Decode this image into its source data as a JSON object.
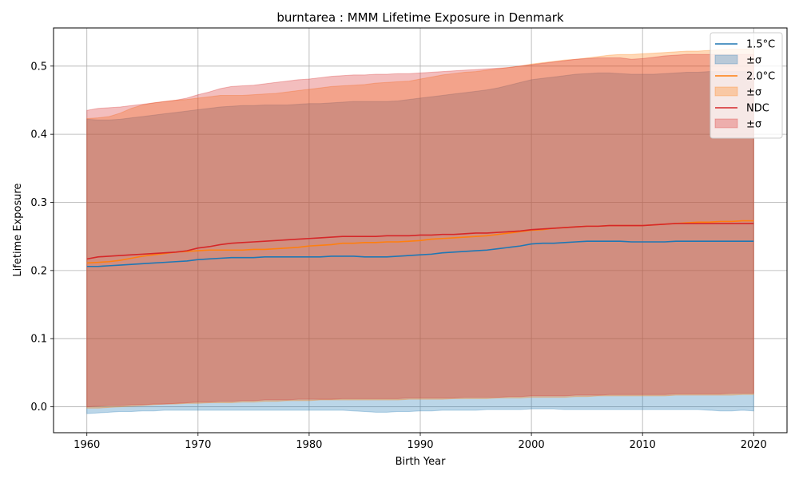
{
  "chart_data": {
    "type": "area",
    "title": "burntarea : MMM Lifetime Exposure in Denmark",
    "xlabel": "Birth Year",
    "ylabel": "Lifetime Exposure",
    "xlim": [
      1957,
      2023
    ],
    "ylim": [
      -0.038,
      0.556
    ],
    "xticks": [
      1960,
      1970,
      1980,
      1990,
      2000,
      2010,
      2020
    ],
    "yticks": [
      0.0,
      0.1,
      0.2,
      0.3,
      0.4,
      0.5
    ],
    "ytick_labels": [
      "0.0",
      "0.1",
      "0.2",
      "0.3",
      "0.4",
      "0.5"
    ],
    "grid": true,
    "legend_position": "top-right",
    "x": [
      1960,
      1961,
      1962,
      1963,
      1964,
      1965,
      1966,
      1967,
      1968,
      1969,
      1970,
      1971,
      1972,
      1973,
      1974,
      1975,
      1976,
      1977,
      1978,
      1979,
      1980,
      1981,
      1982,
      1983,
      1984,
      1985,
      1986,
      1987,
      1988,
      1989,
      1990,
      1991,
      1992,
      1993,
      1994,
      1995,
      1996,
      1997,
      1998,
      1999,
      2000,
      2001,
      2002,
      2003,
      2004,
      2005,
      2006,
      2007,
      2008,
      2009,
      2010,
      2011,
      2012,
      2013,
      2014,
      2015,
      2016,
      2017,
      2018,
      2019,
      2020
    ],
    "series": [
      {
        "name": "1.5°C",
        "band_name": "±σ",
        "color": "#1f77b4",
        "mean": [
          0.206,
          0.206,
          0.207,
          0.208,
          0.209,
          0.21,
          0.211,
          0.212,
          0.213,
          0.214,
          0.216,
          0.217,
          0.218,
          0.219,
          0.219,
          0.219,
          0.22,
          0.22,
          0.22,
          0.22,
          0.22,
          0.22,
          0.221,
          0.221,
          0.221,
          0.22,
          0.22,
          0.22,
          0.221,
          0.222,
          0.223,
          0.224,
          0.226,
          0.227,
          0.228,
          0.229,
          0.23,
          0.232,
          0.234,
          0.236,
          0.239,
          0.24,
          0.24,
          0.241,
          0.242,
          0.243,
          0.243,
          0.243,
          0.243,
          0.242,
          0.242,
          0.242,
          0.242,
          0.243,
          0.243,
          0.243,
          0.243,
          0.243,
          0.243,
          0.243,
          0.243
        ],
        "upper": [
          0.422,
          0.421,
          0.421,
          0.422,
          0.424,
          0.426,
          0.428,
          0.43,
          0.432,
          0.434,
          0.436,
          0.438,
          0.44,
          0.441,
          0.442,
          0.442,
          0.443,
          0.443,
          0.443,
          0.444,
          0.445,
          0.445,
          0.446,
          0.447,
          0.448,
          0.448,
          0.448,
          0.448,
          0.449,
          0.451,
          0.453,
          0.455,
          0.457,
          0.459,
          0.461,
          0.463,
          0.465,
          0.468,
          0.472,
          0.476,
          0.48,
          0.482,
          0.484,
          0.486,
          0.488,
          0.489,
          0.49,
          0.49,
          0.489,
          0.488,
          0.488,
          0.488,
          0.489,
          0.49,
          0.491,
          0.491,
          0.492,
          0.492,
          0.492,
          0.492,
          0.492
        ],
        "lower": [
          -0.01,
          -0.009,
          -0.008,
          -0.007,
          -0.007,
          -0.006,
          -0.006,
          -0.005,
          -0.005,
          -0.005,
          -0.005,
          -0.005,
          -0.005,
          -0.005,
          -0.005,
          -0.005,
          -0.005,
          -0.005,
          -0.005,
          -0.005,
          -0.005,
          -0.005,
          -0.005,
          -0.005,
          -0.006,
          -0.007,
          -0.008,
          -0.008,
          -0.007,
          -0.007,
          -0.006,
          -0.006,
          -0.005,
          -0.005,
          -0.005,
          -0.005,
          -0.004,
          -0.004,
          -0.004,
          -0.004,
          -0.003,
          -0.003,
          -0.003,
          -0.004,
          -0.004,
          -0.004,
          -0.004,
          -0.004,
          -0.004,
          -0.004,
          -0.004,
          -0.004,
          -0.004,
          -0.004,
          -0.004,
          -0.004,
          -0.005,
          -0.006,
          -0.006,
          -0.005,
          -0.006
        ]
      },
      {
        "name": "2.0°C",
        "band_name": "±σ",
        "color": "#ff7f0e",
        "mean": [
          0.211,
          0.212,
          0.213,
          0.215,
          0.218,
          0.221,
          0.223,
          0.225,
          0.227,
          0.228,
          0.229,
          0.23,
          0.23,
          0.23,
          0.23,
          0.231,
          0.231,
          0.232,
          0.233,
          0.234,
          0.236,
          0.237,
          0.238,
          0.24,
          0.24,
          0.241,
          0.241,
          0.242,
          0.242,
          0.243,
          0.244,
          0.246,
          0.247,
          0.248,
          0.249,
          0.25,
          0.251,
          0.253,
          0.255,
          0.257,
          0.259,
          0.26,
          0.262,
          0.263,
          0.264,
          0.265,
          0.265,
          0.266,
          0.266,
          0.266,
          0.266,
          0.267,
          0.268,
          0.269,
          0.27,
          0.271,
          0.271,
          0.272,
          0.272,
          0.273,
          0.273
        ],
        "upper": [
          0.423,
          0.424,
          0.426,
          0.431,
          0.438,
          0.443,
          0.446,
          0.448,
          0.45,
          0.451,
          0.453,
          0.455,
          0.457,
          0.457,
          0.457,
          0.458,
          0.459,
          0.46,
          0.462,
          0.464,
          0.466,
          0.468,
          0.47,
          0.471,
          0.472,
          0.473,
          0.475,
          0.476,
          0.477,
          0.478,
          0.481,
          0.484,
          0.487,
          0.489,
          0.491,
          0.492,
          0.494,
          0.496,
          0.498,
          0.5,
          0.503,
          0.505,
          0.507,
          0.509,
          0.51,
          0.512,
          0.514,
          0.516,
          0.517,
          0.517,
          0.518,
          0.519,
          0.52,
          0.521,
          0.522,
          0.522,
          0.523,
          0.524,
          0.525,
          0.525,
          0.525
        ],
        "lower": [
          -0.002,
          -0.002,
          -0.001,
          0.0,
          0.001,
          0.002,
          0.003,
          0.004,
          0.004,
          0.005,
          0.005,
          0.006,
          0.006,
          0.006,
          0.007,
          0.007,
          0.008,
          0.008,
          0.009,
          0.009,
          0.009,
          0.01,
          0.01,
          0.01,
          0.01,
          0.01,
          0.01,
          0.01,
          0.01,
          0.011,
          0.011,
          0.011,
          0.011,
          0.012,
          0.012,
          0.012,
          0.012,
          0.013,
          0.013,
          0.013,
          0.014,
          0.014,
          0.014,
          0.014,
          0.015,
          0.015,
          0.016,
          0.016,
          0.016,
          0.016,
          0.016,
          0.016,
          0.016,
          0.017,
          0.017,
          0.017,
          0.017,
          0.017,
          0.017,
          0.018,
          0.018
        ]
      },
      {
        "name": "NDC",
        "band_name": "±σ",
        "color": "#d62728",
        "mean": [
          0.217,
          0.22,
          0.221,
          0.222,
          0.223,
          0.224,
          0.225,
          0.226,
          0.227,
          0.229,
          0.233,
          0.235,
          0.238,
          0.24,
          0.241,
          0.242,
          0.243,
          0.244,
          0.245,
          0.246,
          0.247,
          0.248,
          0.249,
          0.25,
          0.25,
          0.25,
          0.25,
          0.251,
          0.251,
          0.251,
          0.252,
          0.252,
          0.253,
          0.253,
          0.254,
          0.255,
          0.255,
          0.256,
          0.257,
          0.258,
          0.26,
          0.261,
          0.262,
          0.263,
          0.264,
          0.265,
          0.265,
          0.266,
          0.266,
          0.266,
          0.266,
          0.267,
          0.268,
          0.269,
          0.269,
          0.269,
          0.269,
          0.269,
          0.269,
          0.269,
          0.269
        ],
        "upper": [
          0.435,
          0.438,
          0.439,
          0.44,
          0.442,
          0.444,
          0.446,
          0.448,
          0.45,
          0.453,
          0.458,
          0.462,
          0.467,
          0.47,
          0.471,
          0.472,
          0.474,
          0.476,
          0.478,
          0.48,
          0.481,
          0.483,
          0.485,
          0.486,
          0.487,
          0.487,
          0.488,
          0.488,
          0.489,
          0.489,
          0.49,
          0.491,
          0.492,
          0.493,
          0.494,
          0.495,
          0.496,
          0.497,
          0.498,
          0.5,
          0.502,
          0.504,
          0.506,
          0.508,
          0.51,
          0.511,
          0.512,
          0.512,
          0.512,
          0.51,
          0.511,
          0.513,
          0.515,
          0.516,
          0.517,
          0.517,
          0.517,
          0.517,
          0.517,
          0.517,
          0.517
        ],
        "lower": [
          0.0,
          0.001,
          0.002,
          0.002,
          0.003,
          0.003,
          0.004,
          0.004,
          0.005,
          0.006,
          0.007,
          0.007,
          0.008,
          0.008,
          0.009,
          0.009,
          0.01,
          0.01,
          0.01,
          0.011,
          0.011,
          0.011,
          0.011,
          0.012,
          0.012,
          0.012,
          0.012,
          0.012,
          0.012,
          0.013,
          0.013,
          0.013,
          0.013,
          0.013,
          0.014,
          0.014,
          0.014,
          0.014,
          0.015,
          0.015,
          0.016,
          0.016,
          0.016,
          0.016,
          0.017,
          0.017,
          0.017,
          0.018,
          0.018,
          0.018,
          0.018,
          0.018,
          0.018,
          0.019,
          0.019,
          0.019,
          0.019,
          0.019,
          0.02,
          0.02,
          0.02
        ]
      }
    ]
  }
}
